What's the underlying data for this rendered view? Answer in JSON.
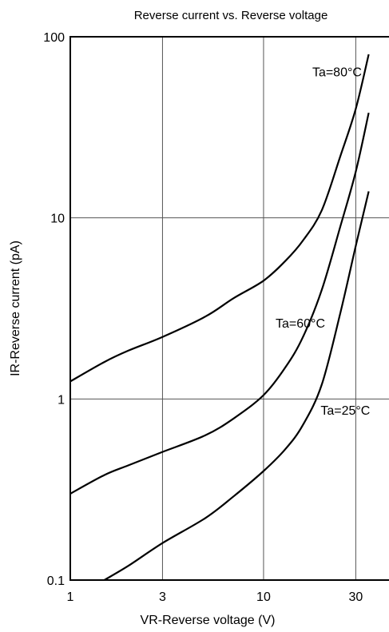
{
  "chart_data": {
    "type": "line",
    "title": "Reverse current vs. Reverse voltage",
    "xlabel": "VR-Reverse voltage (V)",
    "ylabel": "IR-Reverse current (pA)",
    "xscale": "log",
    "yscale": "log",
    "xlim": [
      1,
      45
    ],
    "ylim": [
      0.1,
      100
    ],
    "xticks": [
      1,
      3,
      10,
      30
    ],
    "xtick_labels": [
      "1",
      "3",
      "10",
      "30"
    ],
    "yticks": [
      0.1,
      1,
      10,
      100
    ],
    "ytick_labels": [
      "0.1",
      "1",
      "10",
      "100"
    ],
    "grid": true,
    "series": [
      {
        "name": "Ta=80°C",
        "x": [
          1,
          1.5,
          2,
          3,
          5,
          7,
          10,
          13,
          16,
          20,
          25,
          30,
          35
        ],
        "y": [
          1.25,
          1.6,
          1.85,
          2.2,
          2.85,
          3.6,
          4.5,
          5.8,
          7.5,
          11,
          22,
          40,
          80
        ]
      },
      {
        "name": "Ta=60°C",
        "x": [
          1,
          1.5,
          2,
          3,
          5,
          7,
          10,
          13,
          16,
          20,
          25,
          30,
          35
        ],
        "y": [
          0.3,
          0.38,
          0.43,
          0.51,
          0.63,
          0.78,
          1.05,
          1.5,
          2.2,
          4,
          9,
          18,
          38
        ]
      },
      {
        "name": "Ta=25°C",
        "x": [
          1.5,
          2,
          3,
          5,
          7,
          10,
          13,
          16,
          20,
          25,
          30,
          35
        ],
        "y": [
          0.1,
          0.12,
          0.16,
          0.22,
          0.29,
          0.4,
          0.53,
          0.72,
          1.2,
          3,
          7,
          14
        ]
      }
    ],
    "annotations": [
      {
        "text": "Ta=80°C",
        "series": 0
      },
      {
        "text": "Ta=60°C",
        "series": 1
      },
      {
        "text": "Ta=25°C",
        "series": 2
      }
    ]
  }
}
